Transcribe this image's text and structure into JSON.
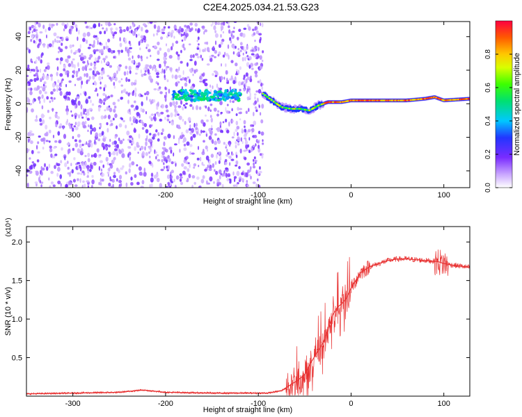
{
  "title": "C2E4.2025.034.21.53.G23",
  "colors": {
    "line": "#e83030",
    "axis": "#000000",
    "background": "#ffffff"
  },
  "chart_data": [
    {
      "type": "heatmap",
      "xlabel": "Height of straight line (km)",
      "ylabel": "Frequency (Hz)",
      "xlim": [
        -350,
        128
      ],
      "ylim": [
        -50,
        49
      ],
      "xticks": [
        -300,
        -200,
        -100,
        0,
        100
      ],
      "yticks": [
        -40,
        -20,
        0,
        20,
        40
      ],
      "colorbar": {
        "label": "Normalized spectral amplitude",
        "range": [
          0.0,
          1.0
        ],
        "ticks": [
          "0.0",
          "0.2",
          "0.4",
          "0.6",
          "0.8"
        ],
        "colormap": "rainbow"
      },
      "features": [
        {
          "kind": "noise",
          "x_range": [
            -350,
            -95
          ],
          "y_range": [
            -50,
            49
          ],
          "level": 0.15
        },
        {
          "kind": "tone",
          "x_range": [
            -192,
            -118
          ],
          "y_center": 5,
          "level": 0.45
        },
        {
          "kind": "trace",
          "x": [
            -95,
            -85,
            -75,
            -65,
            -55,
            -45,
            -35,
            -25,
            -10,
            0,
            30,
            60,
            80,
            90,
            100,
            128
          ],
          "y": [
            6,
            2,
            -2,
            -3,
            -3,
            -4,
            -1,
            1,
            1,
            2,
            2,
            2,
            3,
            4,
            2,
            3
          ],
          "level": 0.9
        }
      ]
    },
    {
      "type": "line",
      "xlabel": "Height of straight line (km)",
      "ylabel": "SNR (10 * v/v)",
      "multiplier": "(x10⁴)",
      "xlim": [
        -350,
        128
      ],
      "ylim": [
        0,
        2.2
      ],
      "xticks": [
        -300,
        -200,
        -100,
        0,
        100
      ],
      "yticks": [
        0.5,
        1.0,
        1.5,
        2.0
      ],
      "series": [
        {
          "x": [
            -350,
            -300,
            -250,
            -225,
            -200,
            -150,
            -110,
            -90,
            -75,
            -65,
            -58,
            -50,
            -45,
            -40,
            -35,
            -30,
            -25,
            -20,
            -15,
            -10,
            -5,
            0,
            5,
            10,
            20,
            30,
            40,
            50,
            60,
            70,
            80,
            90,
            95,
            100,
            105,
            110,
            128
          ],
          "y": [
            0.03,
            0.04,
            0.05,
            0.08,
            0.05,
            0.04,
            0.04,
            0.04,
            0.07,
            0.15,
            0.2,
            0.28,
            0.4,
            0.5,
            0.6,
            0.7,
            0.85,
            1.05,
            1.15,
            1.2,
            1.27,
            1.4,
            1.5,
            1.6,
            1.68,
            1.72,
            1.76,
            1.78,
            1.78,
            1.77,
            1.76,
            1.75,
            1.74,
            1.72,
            1.71,
            1.7,
            1.67
          ]
        }
      ]
    }
  ]
}
